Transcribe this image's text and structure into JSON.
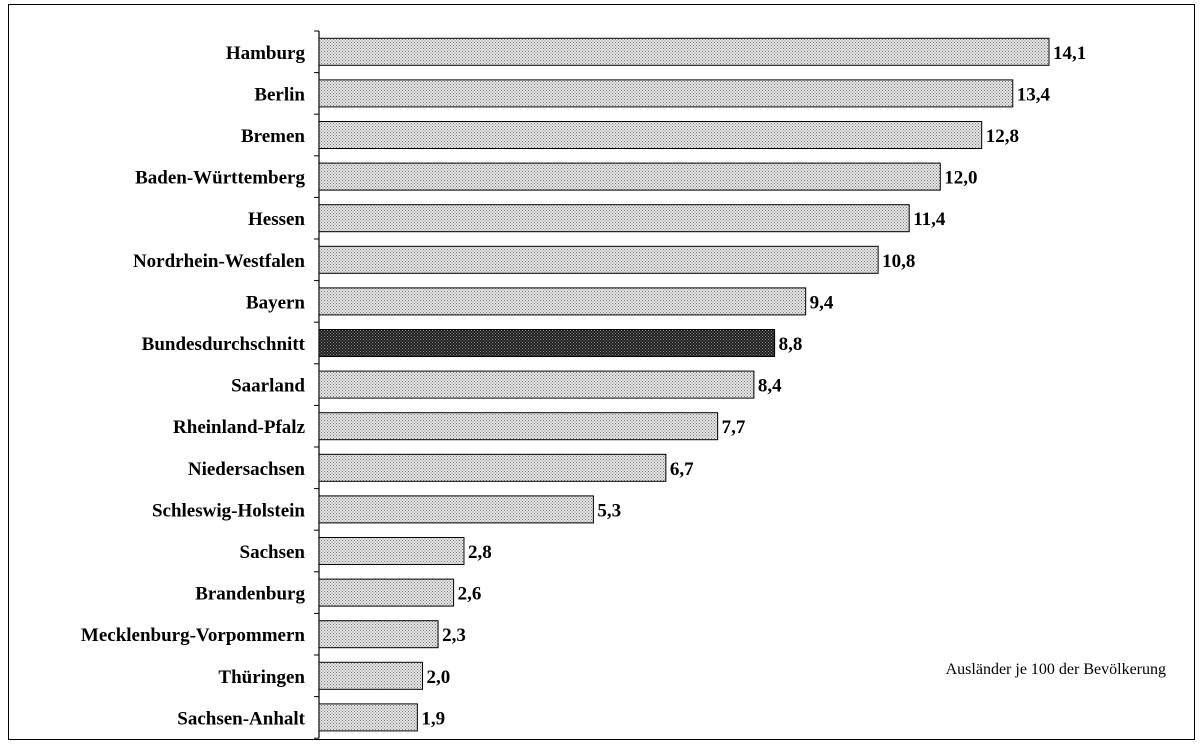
{
  "chart_data": {
    "type": "bar",
    "orientation": "horizontal",
    "categories": [
      "Hamburg",
      "Berlin",
      "Bremen",
      "Baden-Württemberg",
      "Hessen",
      "Nordrhein-Westfalen",
      "Bayern",
      "Bundesdurchschnitt",
      "Saarland",
      "Rheinland-Pfalz",
      "Niedersachsen",
      "Schleswig-Holstein",
      "Sachsen",
      "Brandenburg",
      "Mecklenburg-Vorpommern",
      "Thüringen",
      "Sachsen-Anhalt"
    ],
    "values": [
      14.1,
      13.4,
      12.8,
      12.0,
      11.4,
      10.8,
      9.4,
      8.8,
      8.4,
      7.7,
      6.7,
      5.3,
      2.8,
      2.6,
      2.3,
      2.0,
      1.9
    ],
    "value_labels": [
      "14,1",
      "13,4",
      "12,8",
      "12,0",
      "11,4",
      "10,8",
      "9,4",
      "8,8",
      "8,4",
      "7,7",
      "6,7",
      "5,3",
      "2,8",
      "2,6",
      "2,3",
      "2,0",
      "1,9"
    ],
    "highlight_index": 7,
    "annotation": "Ausländer je 100 der Bevölkerung",
    "title": "",
    "xlabel": "",
    "ylabel": "",
    "xlim": [
      0,
      14.1
    ],
    "grid": false,
    "legend": "none",
    "colors": {
      "bar_fill_light": "#e6e6e6",
      "bar_dot_light": "#7a7a7a",
      "bar_fill_dark": "#1e1e1e",
      "bar_dot_dark": "#8c8c8c",
      "bar_border": "#000000"
    }
  }
}
